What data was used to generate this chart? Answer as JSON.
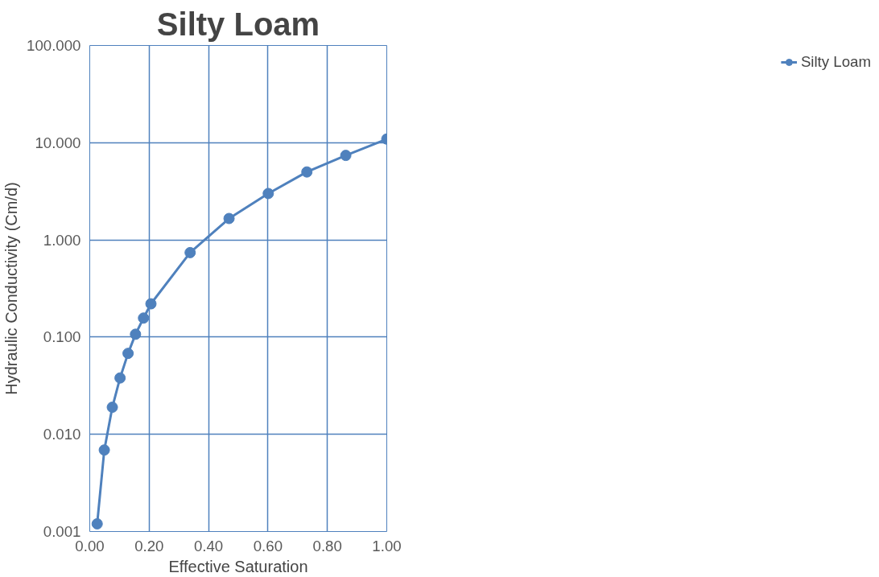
{
  "chart_data": {
    "type": "line",
    "title": "Silty Loam",
    "xlabel": "Effective Saturation",
    "ylabel": "Hydraulic Conductivity (Cm/d)",
    "x": [
      0.025,
      0.049,
      0.076,
      0.102,
      0.129,
      0.154,
      0.181,
      0.206,
      0.338,
      0.469,
      0.601,
      0.731,
      0.862,
      1.0
    ],
    "series": [
      {
        "name": "Silty Loam",
        "color": "#4f81bd",
        "values": [
          0.0012,
          0.0069,
          0.019,
          0.038,
          0.068,
          0.107,
          0.157,
          0.22,
          0.74,
          1.66,
          3.0,
          5.0,
          7.4,
          10.9
        ]
      }
    ],
    "log": "y",
    "xlim": [
      0,
      1
    ],
    "ylim": [
      0.001,
      100
    ],
    "xticks": [
      {
        "value": 0,
        "label": "0.00"
      },
      {
        "value": 0.2,
        "label": "0.20"
      },
      {
        "value": 0.4,
        "label": "0.40"
      },
      {
        "value": 0.6,
        "label": "0.60"
      },
      {
        "value": 0.8,
        "label": "0.80"
      },
      {
        "value": 1,
        "label": "1.00"
      }
    ],
    "yticks": [
      {
        "value": 0.001,
        "label": "0.001"
      },
      {
        "value": 0.01,
        "label": "0.010"
      },
      {
        "value": 0.1,
        "label": "0.100"
      },
      {
        "value": 1,
        "label": "1.000"
      },
      {
        "value": 10,
        "label": "10.000"
      },
      {
        "value": 100,
        "label": "100.000"
      }
    ],
    "grid": true,
    "legend": "right",
    "marker": "circle",
    "line_style": "solid"
  }
}
